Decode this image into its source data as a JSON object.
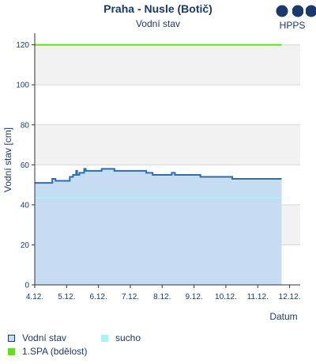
{
  "chart_data": {
    "type": "area",
    "title": "Praha - Nusle (Botič)",
    "subtitle": "Vodní stav",
    "brand": "HPPS",
    "ylabel": "Vodní stav [cm]",
    "xlabel": "Datum",
    "ylim": [
      0,
      125
    ],
    "xlim": [
      4,
      12.333
    ],
    "yticks": [
      0,
      20,
      40,
      60,
      80,
      100,
      120
    ],
    "xticks": [
      {
        "v": 4,
        "label": "4.12."
      },
      {
        "v": 5,
        "label": "5.12."
      },
      {
        "v": 6,
        "label": "6.12."
      },
      {
        "v": 7,
        "label": "7.12."
      },
      {
        "v": 8,
        "label": "8.12."
      },
      {
        "v": 9,
        "label": "9.12."
      },
      {
        "v": 10,
        "label": "10.12."
      },
      {
        "v": 11,
        "label": "11.12."
      },
      {
        "v": 12,
        "label": "12.12."
      }
    ],
    "grid": true,
    "series": [
      {
        "name": "Vodní stav",
        "color": "#2a6fb0",
        "fill": "#c6dcf2",
        "points": [
          [
            4.0,
            51
          ],
          [
            4.55,
            51
          ],
          [
            4.55,
            53
          ],
          [
            4.65,
            53
          ],
          [
            4.65,
            52
          ],
          [
            5.1,
            52
          ],
          [
            5.1,
            54
          ],
          [
            5.2,
            54
          ],
          [
            5.2,
            55
          ],
          [
            5.3,
            55
          ],
          [
            5.3,
            57
          ],
          [
            5.33,
            57
          ],
          [
            5.33,
            55
          ],
          [
            5.4,
            55
          ],
          [
            5.4,
            56
          ],
          [
            5.55,
            56
          ],
          [
            5.55,
            58
          ],
          [
            5.6,
            58
          ],
          [
            5.6,
            57
          ],
          [
            6.1,
            57
          ],
          [
            6.1,
            58
          ],
          [
            6.5,
            58
          ],
          [
            6.5,
            57
          ],
          [
            7.5,
            57
          ],
          [
            7.5,
            56
          ],
          [
            7.7,
            56
          ],
          [
            7.7,
            55
          ],
          [
            8.3,
            55
          ],
          [
            8.3,
            56
          ],
          [
            8.4,
            56
          ],
          [
            8.4,
            55
          ],
          [
            9.2,
            55
          ],
          [
            9.2,
            54
          ],
          [
            10.2,
            54
          ],
          [
            10.2,
            53
          ],
          [
            11.75,
            53
          ]
        ]
      },
      {
        "name": "sucho",
        "color": "#a6f4f4",
        "value": 43.5,
        "range": [
          4.0,
          11.75
        ]
      },
      {
        "name": "1.SPA (bdělost)",
        "color": "#66dd22",
        "value": 120,
        "range": [
          4.0,
          11.75
        ]
      }
    ],
    "legend": "bottom-left"
  }
}
